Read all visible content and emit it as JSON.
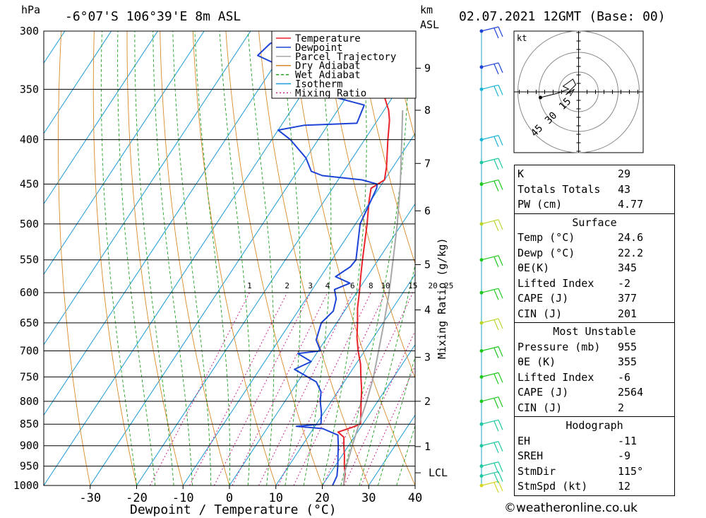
{
  "header": {
    "location": "-6°07'S  106°39'E  8m  ASL",
    "datetime": "02.07.2021  12GMT  (Base: 00)",
    "pressure_unit": "hPa",
    "height_unit_1": "km",
    "height_unit_2": "ASL"
  },
  "legend": [
    {
      "name": "Temperature",
      "color": "#e8232a",
      "dash": ""
    },
    {
      "name": "Dewpoint",
      "color": "#1d44d6",
      "dash": ""
    },
    {
      "name": "Parcel Trajectory",
      "color": "#a8a8a8",
      "dash": ""
    },
    {
      "name": "Dry Adiabat",
      "color": "#d98a2a",
      "dash": ""
    },
    {
      "name": "Wet Adiabat",
      "color": "#1ea01e",
      "dash": "4 3"
    },
    {
      "name": "Isotherm",
      "color": "#1a9ad6",
      "dash": ""
    },
    {
      "name": "Mixing Ratio",
      "color": "#c8288c",
      "dash": "2 3"
    }
  ],
  "colors": {
    "temperature": "#e8232a",
    "dewpoint": "#1d44d6",
    "parcel": "#a8a8a8",
    "dry_adiabat": "#d98a2a",
    "wet_adiabat": "#1ea01e",
    "isotherm": "#1a9ad6",
    "mixing_ratio": "#c8288c"
  },
  "chart_data": {
    "type": "line",
    "title": "-6°07'S  106°39'E  8m  ASL",
    "xlabel": "Dewpoint / Temperature (°C)",
    "ylabel": "hPa",
    "y2label": "Mixing Ratio (g/kg)",
    "xlim": [
      -40,
      40
    ],
    "ylim": [
      1000,
      300
    ],
    "y_scale": "log",
    "skew": true,
    "x_ticks": [
      -30,
      -20,
      -10,
      0,
      10,
      20,
      30,
      40
    ],
    "pressure_levels": [
      300,
      350,
      400,
      450,
      500,
      550,
      600,
      650,
      700,
      750,
      800,
      850,
      900,
      950,
      1000
    ],
    "km_ticks": [
      {
        "label": "1",
        "p": 902
      },
      {
        "label": "2",
        "p": 800
      },
      {
        "label": "3",
        "p": 712
      },
      {
        "label": "4",
        "p": 628
      },
      {
        "label": "5",
        "p": 557
      },
      {
        "label": "6",
        "p": 483
      },
      {
        "label": "7",
        "p": 426
      },
      {
        "label": "8",
        "p": 370
      },
      {
        "label": "9",
        "p": 331
      }
    ],
    "lcl": {
      "label": "LCL",
      "p": 967
    },
    "mixing_ratio_labels": [
      "1",
      "2",
      "3",
      "4",
      "6",
      "8",
      "10",
      "15",
      "20",
      "25"
    ],
    "series": [
      {
        "name": "Temperature",
        "points": [
          [
            1000,
            24.6
          ],
          [
            970,
            23.3
          ],
          [
            950,
            22.0
          ],
          [
            925,
            20.6
          ],
          [
            900,
            19.0
          ],
          [
            880,
            17.8
          ],
          [
            868,
            15.8
          ],
          [
            858,
            18.0
          ],
          [
            850,
            19.5
          ],
          [
            825,
            18.0
          ],
          [
            800,
            16.4
          ],
          [
            775,
            14.8
          ],
          [
            750,
            12.9
          ],
          [
            725,
            11.0
          ],
          [
            700,
            8.6
          ],
          [
            675,
            6.4
          ],
          [
            650,
            4.5
          ],
          [
            625,
            2.4
          ],
          [
            600,
            0.6
          ],
          [
            575,
            -1.4
          ],
          [
            550,
            -3.4
          ],
          [
            500,
            -7.5
          ],
          [
            470,
            -10.4
          ],
          [
            455,
            -11.7
          ],
          [
            445,
            -10.0
          ],
          [
            430,
            -11.4
          ],
          [
            400,
            -15.0
          ],
          [
            380,
            -17.4
          ],
          [
            370,
            -19.0
          ],
          [
            350,
            -23.4
          ],
          [
            325,
            -27.8
          ],
          [
            300,
            -32.5
          ]
        ]
      },
      {
        "name": "Dewpoint",
        "points": [
          [
            1000,
            22.2
          ],
          [
            975,
            21.8
          ],
          [
            950,
            20.6
          ],
          [
            925,
            19.2
          ],
          [
            900,
            17.8
          ],
          [
            875,
            16.2
          ],
          [
            860,
            12.0
          ],
          [
            855,
            6.0
          ],
          [
            850,
            11.0
          ],
          [
            825,
            9.5
          ],
          [
            800,
            7.6
          ],
          [
            780,
            6.4
          ],
          [
            760,
            4.0
          ],
          [
            735,
            -2.5
          ],
          [
            720,
            0.0
          ],
          [
            705,
            -4.0
          ],
          [
            700,
            0.5
          ],
          [
            680,
            -2.0
          ],
          [
            650,
            -3.3
          ],
          [
            630,
            -2.4
          ],
          [
            610,
            -3.5
          ],
          [
            595,
            -5.2
          ],
          [
            585,
            -2.8
          ],
          [
            575,
            -6.8
          ],
          [
            560,
            -5.0
          ],
          [
            550,
            -4.8
          ],
          [
            500,
            -9.0
          ],
          [
            455,
            -10.5
          ],
          [
            450,
            -11.0
          ],
          [
            445,
            -14.8
          ],
          [
            440,
            -24.0
          ],
          [
            435,
            -27.0
          ],
          [
            420,
            -30.0
          ],
          [
            400,
            -36.0
          ],
          [
            390,
            -40.0
          ],
          [
            385,
            -35.0
          ],
          [
            383,
            -24.0
          ],
          [
            365,
            -25.0
          ],
          [
            350,
            -40.0
          ],
          [
            330,
            -48.0
          ],
          [
            320,
            -55.0
          ],
          [
            310,
            -54.0
          ],
          [
            300,
            -48.0
          ]
        ]
      },
      {
        "name": "Parcel Trajectory",
        "points": [
          [
            1000,
            24.6
          ],
          [
            967,
            23.0
          ],
          [
            900,
            20.8
          ],
          [
            850,
            19.2
          ],
          [
            800,
            17.6
          ],
          [
            750,
            15.6
          ],
          [
            700,
            13.0
          ],
          [
            650,
            10.2
          ],
          [
            600,
            7.0
          ],
          [
            550,
            3.2
          ],
          [
            500,
            -1.0
          ],
          [
            450,
            -6.0
          ],
          [
            400,
            -12.0
          ],
          [
            370,
            -16.0
          ]
        ]
      }
    ],
    "winds": [
      {
        "p": 1000,
        "color": "#d6d62a"
      },
      {
        "p": 975,
        "color": "#1ec8a0"
      },
      {
        "p": 950,
        "color": "#1ec8a0"
      },
      {
        "p": 900,
        "color": "#1ec8a0"
      },
      {
        "p": 850,
        "color": "#1ec8a0"
      },
      {
        "p": 800,
        "color": "#1ec81e"
      },
      {
        "p": 750,
        "color": "#1ec81e"
      },
      {
        "p": 700,
        "color": "#1ec81e"
      },
      {
        "p": 650,
        "color": "#b8d62a"
      },
      {
        "p": 600,
        "color": "#1ec81e"
      },
      {
        "p": 550,
        "color": "#1ec81e"
      },
      {
        "p": 500,
        "color": "#b8d62a"
      },
      {
        "p": 450,
        "color": "#1ec81e"
      },
      {
        "p": 425,
        "color": "#1ec8a0"
      },
      {
        "p": 400,
        "color": "#1ab4d6"
      },
      {
        "p": 350,
        "color": "#1ab4d6"
      },
      {
        "p": 330,
        "color": "#1d44d6"
      },
      {
        "p": 300,
        "color": "#1d44d6"
      }
    ],
    "hodograph": {
      "unit_label": "kt",
      "ring_labels": [
        "15",
        "30",
        "45"
      ]
    }
  },
  "indices": {
    "general": [
      {
        "label": "K",
        "value": "29"
      },
      {
        "label": "Totals Totals",
        "value": "43"
      },
      {
        "label": "PW (cm)",
        "value": "4.77"
      }
    ],
    "surface_title": "Surface",
    "surface": [
      {
        "label": "Temp (°C)",
        "value": "24.6"
      },
      {
        "label": "Dewp (°C)",
        "value": "22.2"
      },
      {
        "label": "θE(K)",
        "value": "345"
      },
      {
        "label": "Lifted Index",
        "value": "-2"
      },
      {
        "label": "CAPE (J)",
        "value": "377"
      },
      {
        "label": "CIN (J)",
        "value": "201"
      }
    ],
    "mu_title": "Most Unstable",
    "most_unstable": [
      {
        "label": "Pressure (mb)",
        "value": "955"
      },
      {
        "label": "θE (K)",
        "value": "355"
      },
      {
        "label": "Lifted Index",
        "value": "-6"
      },
      {
        "label": "CAPE (J)",
        "value": "2564"
      },
      {
        "label": "CIN (J)",
        "value": "2"
      }
    ],
    "hodo_title": "Hodograph",
    "hodograph": [
      {
        "label": "EH",
        "value": "-11"
      },
      {
        "label": "SREH",
        "value": "-9"
      },
      {
        "label": "StmDir",
        "value": "115°"
      },
      {
        "label": "StmSpd (kt)",
        "value": "12"
      }
    ]
  },
  "footer": "©weatheronline.co.uk"
}
